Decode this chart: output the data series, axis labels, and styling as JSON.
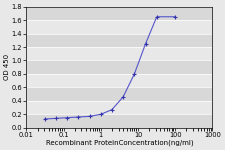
{
  "x": [
    0.031,
    0.063,
    0.125,
    0.25,
    0.5,
    1.0,
    2.0,
    4.0,
    8.0,
    16.0,
    32.0,
    100.0
  ],
  "y": [
    0.13,
    0.14,
    0.15,
    0.16,
    0.17,
    0.2,
    0.27,
    0.46,
    0.8,
    1.25,
    1.65,
    1.65
  ],
  "line_color": "#5555cc",
  "marker": "P",
  "marker_size": 2.5,
  "marker_facecolor": "#3333aa",
  "xlabel": "Recombinant ProteinConcentration(ng/ml)",
  "ylabel": "OD 450",
  "ylim": [
    0,
    1.8
  ],
  "yticks": [
    0,
    0.2,
    0.4,
    0.6,
    0.8,
    1.0,
    1.2,
    1.4,
    1.6,
    1.8
  ],
  "xlim_log": [
    0.01,
    1000
  ],
  "xticks": [
    0.01,
    0.1,
    1,
    10,
    100,
    1000
  ],
  "figure_bg": "#e8e8e8",
  "plot_bg": "#e8e8e8",
  "grid_color": "#ffffff",
  "xlabel_fontsize": 5.0,
  "ylabel_fontsize": 5.0,
  "tick_fontsize": 4.8,
  "linewidth": 0.8
}
